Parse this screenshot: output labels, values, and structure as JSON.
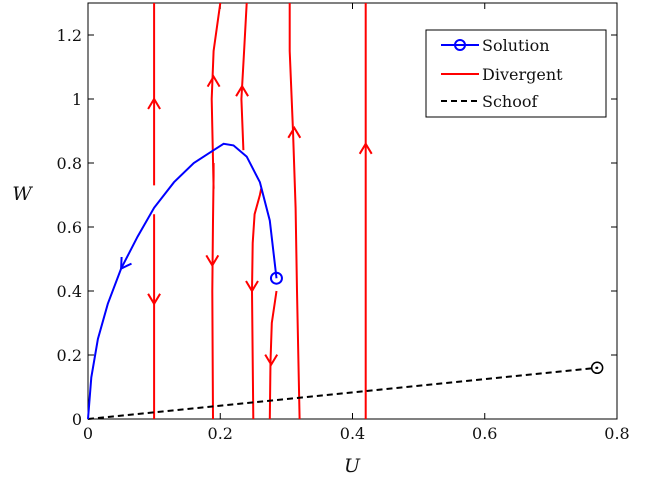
{
  "chart_data": {
    "type": "line",
    "xlabel": "U",
    "ylabel": "W",
    "xlim": [
      0,
      0.8
    ],
    "ylim": [
      0,
      1.3
    ],
    "xticks": [
      "0",
      "0.2",
      "0.4",
      "0.6",
      "0.8"
    ],
    "yticks": [
      "0",
      "0.2",
      "0.4",
      "0.6",
      "0.8",
      "1",
      "1.2"
    ],
    "xtick_values": [
      0,
      0.2,
      0.4,
      0.6,
      0.8
    ],
    "ytick_values": [
      0,
      0.2,
      0.4,
      0.6,
      0.8,
      1.0,
      1.2
    ],
    "grid": false,
    "legend_position": "top-right",
    "colors": {
      "solution": "#0000ff",
      "divergent": "#ff0000",
      "schoof": "#000000"
    },
    "series": [
      {
        "name": "Solution",
        "style": "solid-with-circle-marker",
        "color": "#0000ff",
        "x": [
          0.0,
          0.005,
          0.015,
          0.03,
          0.05,
          0.075,
          0.1,
          0.13,
          0.16,
          0.19,
          0.205,
          0.22,
          0.24,
          0.26,
          0.275,
          0.285
        ],
        "y": [
          0.0,
          0.13,
          0.25,
          0.36,
          0.47,
          0.57,
          0.66,
          0.74,
          0.8,
          0.84,
          0.86,
          0.855,
          0.82,
          0.74,
          0.62,
          0.44
        ],
        "endpoint_marker": [
          0.285,
          0.44
        ]
      },
      {
        "name": "Divergent",
        "style": "solid",
        "color": "#ff0000",
        "lines": [
          {
            "x": [
              0.1,
              0.1,
              0.1
            ],
            "y": [
              1.3,
              1.0,
              0.73
            ]
          },
          {
            "x": [
              0.1,
              0.1,
              0.1
            ],
            "y": [
              0.64,
              0.36,
              0.0
            ]
          },
          {
            "x": [
              0.19,
              0.187,
              0.19,
              0.2
            ],
            "y": [
              0.72,
              1.0,
              1.15,
              1.3
            ]
          },
          {
            "x": [
              0.189,
              0.188,
              0.189,
              0.19,
              0.19
            ],
            "y": [
              0.0,
              0.4,
              0.62,
              0.76,
              0.8
            ]
          },
          {
            "x": [
              0.235,
              0.232,
              0.236,
              0.24
            ],
            "y": [
              0.84,
              1.0,
              1.15,
              1.3
            ]
          },
          {
            "x": [
              0.25,
              0.248,
              0.249,
              0.252,
              0.26,
              0.262
            ],
            "y": [
              0.0,
              0.4,
              0.55,
              0.64,
              0.7,
              0.72
            ]
          },
          {
            "x": [
              0.275,
              0.276,
              0.278,
              0.283,
              0.285
            ],
            "y": [
              0.0,
              0.18,
              0.3,
              0.37,
              0.4
            ]
          },
          {
            "x": [
              0.32,
              0.316,
              0.314,
              0.31,
              0.305,
              0.305
            ],
            "y": [
              0.0,
              0.4,
              0.66,
              0.9,
              1.15,
              1.3
            ]
          },
          {
            "x": [
              0.42,
              0.42,
              0.42,
              0.42
            ],
            "y": [
              0.0,
              0.4,
              0.85,
              1.3
            ]
          }
        ]
      },
      {
        "name": "Schoof",
        "style": "dashed",
        "color": "#000000",
        "x": [
          0.0,
          0.77
        ],
        "y": [
          0.0,
          0.16
        ],
        "endpoint_marker": [
          0.77,
          0.16
        ]
      }
    ],
    "arrows": [
      {
        "x": 0.1,
        "y": 1.0,
        "dir": "up"
      },
      {
        "x": 0.1,
        "y": 0.36,
        "dir": "down"
      },
      {
        "x": 0.19,
        "y": 1.07,
        "dir": "up"
      },
      {
        "x": 0.188,
        "y": 0.48,
        "dir": "down"
      },
      {
        "x": 0.233,
        "y": 1.04,
        "dir": "up"
      },
      {
        "x": 0.248,
        "y": 0.4,
        "dir": "down"
      },
      {
        "x": 0.277,
        "y": 0.17,
        "dir": "down"
      },
      {
        "x": 0.312,
        "y": 0.91,
        "dir": "up"
      },
      {
        "x": 0.42,
        "y": 0.86,
        "dir": "up"
      }
    ],
    "solution_arrow": {
      "x": 0.05,
      "y": 0.47,
      "dir": "down-left"
    }
  }
}
